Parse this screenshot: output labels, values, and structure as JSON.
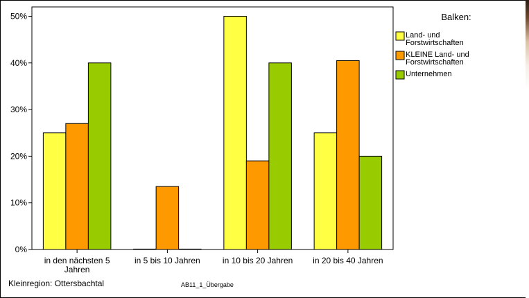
{
  "chart_data": {
    "type": "bar",
    "categories": [
      [
        "in den nächsten 5",
        "Jahren"
      ],
      [
        "in 5 bis 10 Jahren"
      ],
      [
        "in 10 bis 20 Jahren"
      ],
      [
        "in 20 bis 40 Jahren"
      ]
    ],
    "series": [
      {
        "name": [
          "Land- und",
          "Forstwirtschaften"
        ],
        "color": "#ffff44",
        "values": [
          25,
          0,
          50,
          25
        ]
      },
      {
        "name": [
          "KLEINE Land- und",
          "Forstwirtschaften"
        ],
        "color": "#ff9900",
        "values": [
          27,
          13.5,
          19,
          40.5
        ]
      },
      {
        "name": [
          "Unternehmen"
        ],
        "color": "#99cc00",
        "values": [
          40,
          0,
          40,
          20
        ]
      }
    ],
    "ylim": [
      0,
      52
    ],
    "yticks": [
      0,
      10,
      20,
      30,
      40,
      50
    ],
    "ytick_format": "{v}%",
    "legend_title": "Balken:",
    "legend_position": "right",
    "grid": false
  },
  "footer": {
    "region": "Kleinregion: Ottersbachtal",
    "code": "AB11_1_Übergabe"
  }
}
